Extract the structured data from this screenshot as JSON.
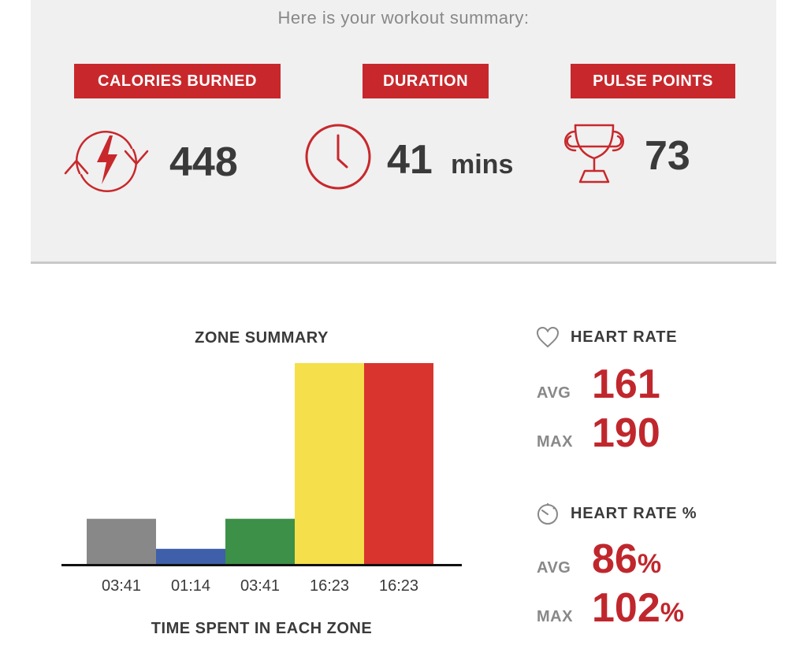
{
  "summary": {
    "intro": "Here is your workout summary:",
    "stats": [
      {
        "label": "CALORIES BURNED",
        "value": "448",
        "unit": "",
        "icon": "calories-refresh-bolt-icon"
      },
      {
        "label": "DURATION",
        "value": "41",
        "unit": "mins",
        "icon": "clock-icon"
      },
      {
        "label": "PULSE POINTS",
        "value": "73",
        "unit": "",
        "icon": "trophy-icon"
      }
    ]
  },
  "chart_data": {
    "type": "bar",
    "title": "ZONE SUMMARY",
    "xlabel": "TIME SPENT IN EACH ZONE",
    "ylabel": "",
    "categories": [
      "03:41",
      "01:14",
      "03:41",
      "16:23",
      "16:23"
    ],
    "values": [
      221,
      74,
      221,
      983,
      983
    ],
    "colors": [
      "#888888",
      "#3f5faa",
      "#3c9047",
      "#f5e04b",
      "#d9342e"
    ],
    "ylim": [
      0,
      983
    ],
    "grid": false,
    "legend": "none"
  },
  "heart_rate": {
    "header": "HEART RATE",
    "icon": "heart-icon",
    "avg_label": "AVG",
    "avg_value": "161",
    "max_label": "MAX",
    "max_value": "190"
  },
  "heart_rate_pct": {
    "header": "HEART RATE %",
    "icon": "gauge-icon",
    "avg_label": "AVG",
    "avg_value": "86",
    "max_label": "MAX",
    "max_value": "102",
    "unit": "%"
  },
  "colors": {
    "accent": "#c8282c",
    "value_text": "#3a3a3a",
    "panel_bg": "#f0f0f0"
  }
}
